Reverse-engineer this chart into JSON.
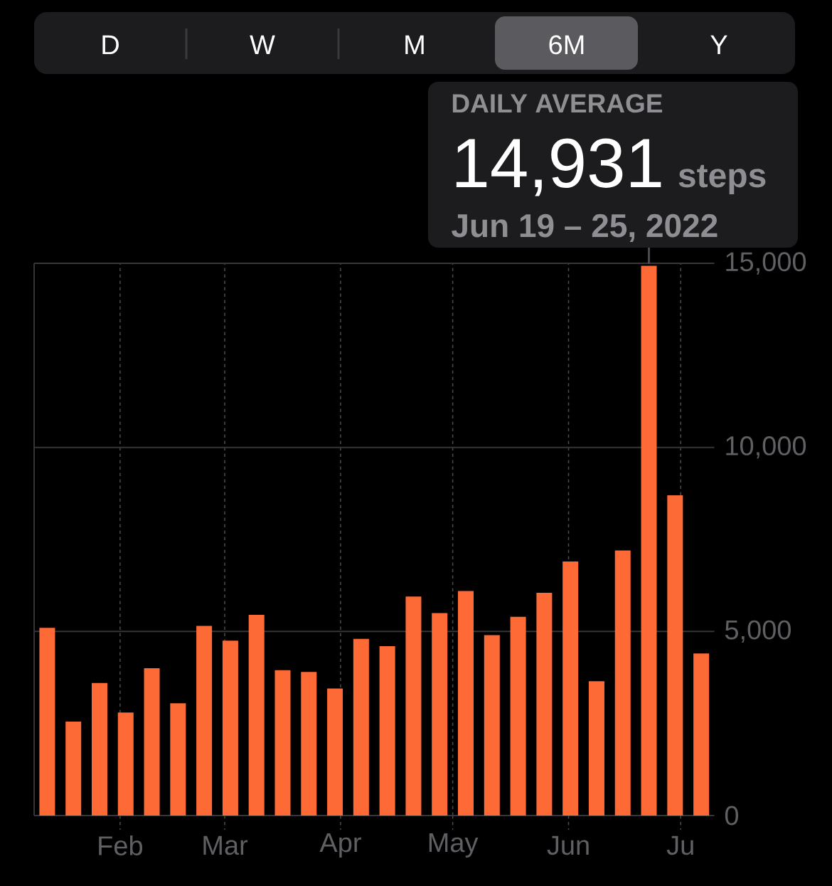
{
  "chart_data": {
    "type": "bar",
    "x": [
      "2022-01-12T12:00",
      "2022-01-19T12:00",
      "2022-01-26T12:00",
      "2022-02-02T12:00",
      "2022-02-09T12:00",
      "2022-02-16T12:00",
      "2022-02-23T12:00",
      "2022-03-02T12:00",
      "2022-03-09T12:00",
      "2022-03-16T12:00",
      "2022-03-23T12:00",
      "2022-03-30T12:00",
      "2022-04-06T12:00",
      "2022-04-13T12:00",
      "2022-04-20T12:00",
      "2022-04-27T12:00",
      "2022-05-04T12:00",
      "2022-05-11T12:00",
      "2022-05-18T12:00",
      "2022-05-25T12:00",
      "2022-06-01T12:00",
      "2022-06-08T12:00",
      "2022-06-15T12:00",
      "2022-06-22T12:00",
      "2022-06-29T12:00",
      "2022-07-06T12:00"
    ],
    "values": [
      5100,
      2550,
      3600,
      2800,
      4000,
      3050,
      5150,
      4750,
      5450,
      3950,
      3900,
      3450,
      4800,
      4600,
      5950,
      5500,
      6100,
      4900,
      5400,
      6050,
      6900,
      3650,
      7200,
      14931,
      8700,
      4400
    ],
    "value_labels": [
      null,
      null,
      null,
      null,
      null,
      null,
      null,
      null,
      null,
      null,
      null,
      null,
      null,
      null,
      null,
      null,
      null,
      null,
      null,
      null,
      null,
      null,
      null,
      "14,931",
      null,
      null
    ],
    "color": "#fe6a35",
    "xlim": [
      "2022-01-09",
      "2022-07-10"
    ],
    "xticks": [
      {
        "value": "2022-02-01",
        "label": "Feb"
      },
      {
        "value": "2022-03-01",
        "label": "Mar"
      },
      {
        "value": "2022-04-01",
        "label": "Apr"
      },
      {
        "value": "2022-05-01",
        "label": "May"
      },
      {
        "value": "2022-06-01",
        "label": "Jun"
      },
      {
        "value": "2022-07-01",
        "label": "Ju"
      }
    ],
    "ylim": [
      0,
      15000
    ],
    "yticks": [
      0,
      {
        "value": 5000,
        "label": "5,000"
      },
      {
        "value": 10000,
        "label": "10,000"
      },
      {
        "value": 15000,
        "label": "15,000"
      }
    ],
    "grid": true,
    "annotations": [
      "D",
      "W",
      "M",
      "6M",
      "Y",
      "DAILY AVERAGE",
      {
        "text": "steps",
        "x": "2022-06-22T12:00",
        "y": 14931
      },
      {
        "text": "Jun 19 – 25, 2022",
        "x": "2022-06-22T12:00",
        "y": 14931
      }
    ]
  }
}
